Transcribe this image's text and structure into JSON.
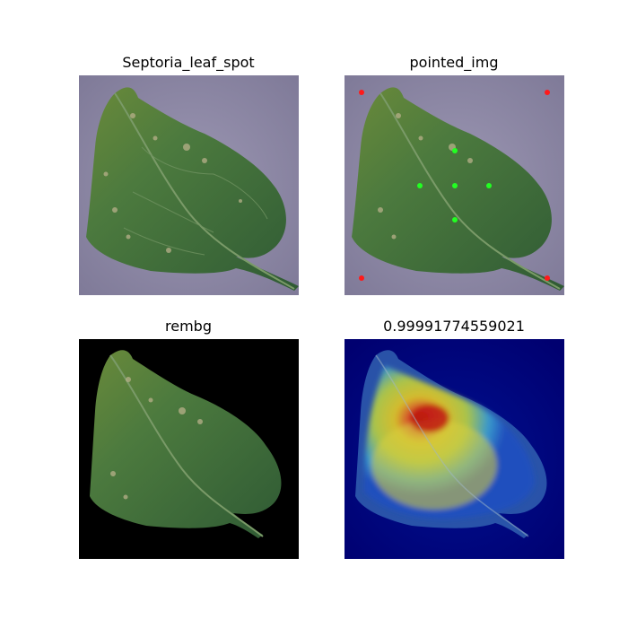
{
  "panels": [
    {
      "id": "original",
      "title": "Septoria_leaf_spot"
    },
    {
      "id": "pointed",
      "title": "pointed_img"
    },
    {
      "id": "rembg",
      "title": "rembg"
    },
    {
      "id": "heatmap",
      "title": "0.99991774559021"
    }
  ],
  "colors": {
    "background_paper": "#8f8aa6",
    "leaf_green": "#3f6a3a",
    "marker_red": "#ff1a1a",
    "marker_green": "#22ff22",
    "heatmap_background": "#00007a"
  }
}
